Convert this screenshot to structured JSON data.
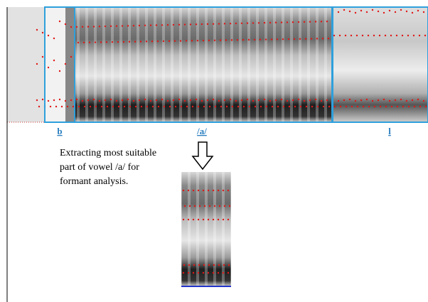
{
  "segments": [
    "b",
    "/a/",
    "l"
  ],
  "caption": [
    "Extracting most suitable",
    "part of vowel /a/ for",
    "formant analysis."
  ]
}
